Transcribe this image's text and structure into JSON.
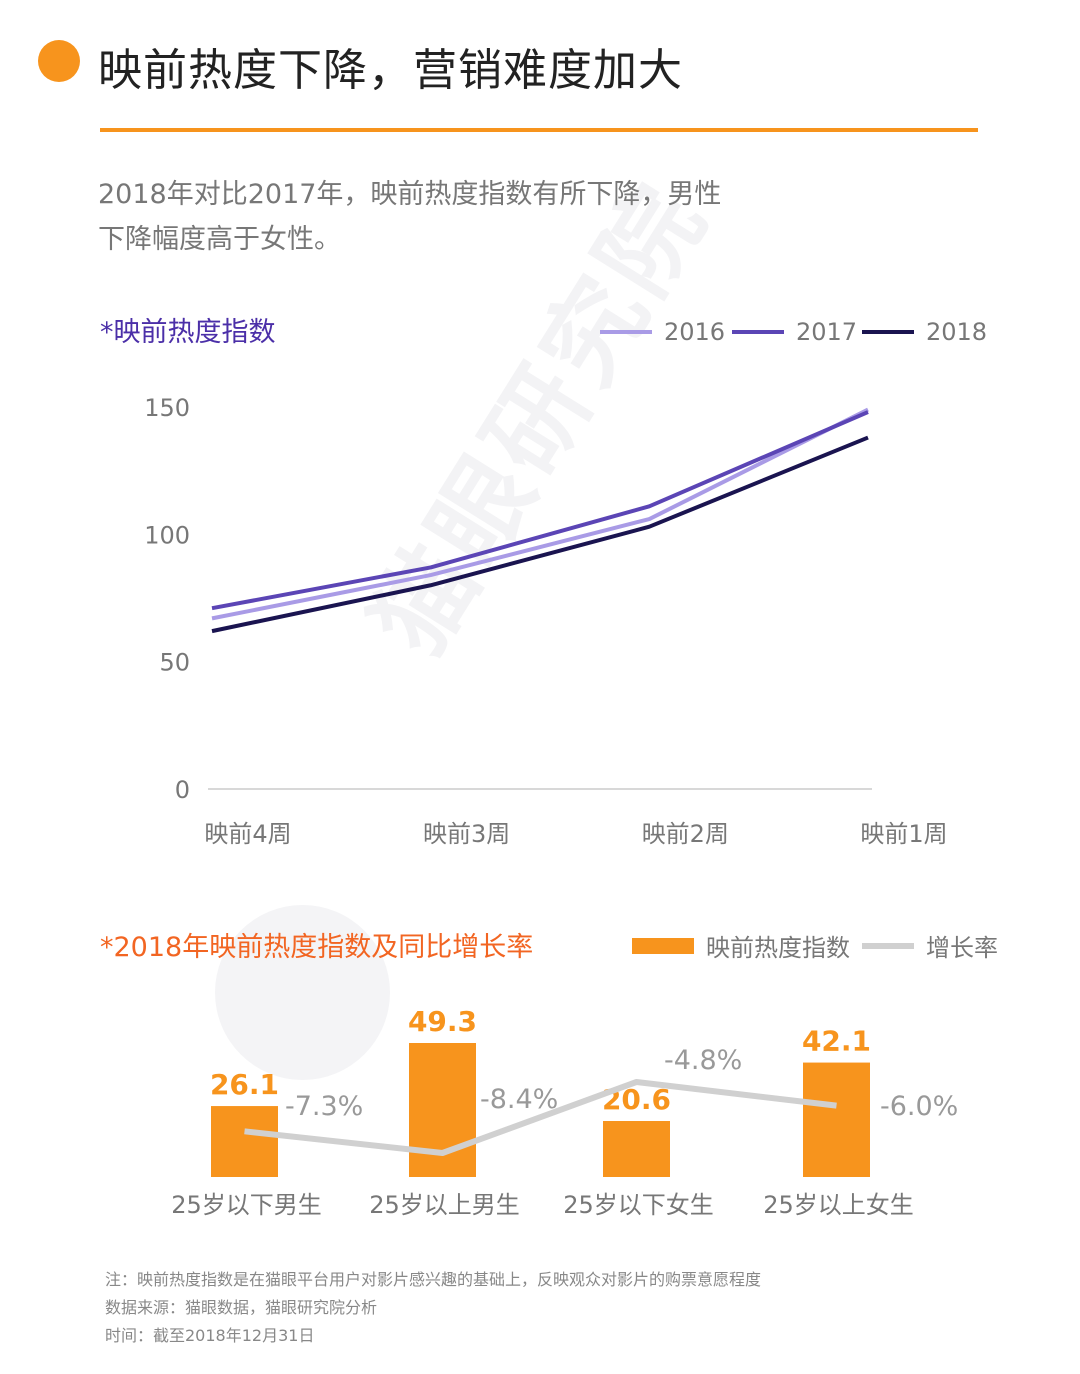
{
  "header": {
    "title": "映前热度下降，营销难度加大",
    "subtitle_line1": "2018年对比2017年，映前热度指数有所下降，男性",
    "subtitle_line2": "下降幅度高于女性。"
  },
  "watermark": "猫眼研究院",
  "colors": {
    "accent": "#f7941d",
    "s2016": "#a99be6",
    "s2017": "#5b45b5",
    "s2018": "#1a1450",
    "growth": "#d0d0d0"
  },
  "chart_data": [
    {
      "type": "line",
      "title": "*映前热度指数",
      "categories": [
        "映前4周",
        "映前3周",
        "映前2周",
        "映前1周"
      ],
      "series": [
        {
          "name": "2016",
          "values": [
            67,
            84,
            106,
            149
          ]
        },
        {
          "name": "2017",
          "values": [
            71,
            87,
            111,
            148
          ]
        },
        {
          "name": "2018",
          "values": [
            62,
            80,
            103,
            138
          ]
        }
      ],
      "yticks": [
        0,
        50,
        100,
        150
      ],
      "ylim": [
        0,
        150
      ],
      "grid": false,
      "legend": "top-right"
    },
    {
      "type": "bar",
      "title": "*2018年映前热度指数及同比增长率",
      "categories": [
        "25岁以下男生",
        "25岁以上男生",
        "25岁以下女生",
        "25岁以上女生"
      ],
      "series": [
        {
          "name": "映前热度指数",
          "values": [
            26.1,
            49.3,
            20.6,
            42.1
          ],
          "labels": [
            "26.1",
            "49.3",
            "20.6",
            "42.1"
          ]
        },
        {
          "name": "增长率",
          "values": [
            -7.3,
            -8.4,
            -4.8,
            -6.0
          ],
          "labels": [
            "-7.3%",
            "-8.4%",
            "-4.8%",
            "-6.0%"
          ]
        }
      ],
      "legend": "top-right"
    }
  ],
  "notes": {
    "note": "注：映前热度指数是在猫眼平台用户对影片感兴趣的基础上，反映观众对影片的购票意愿程度",
    "source": "数据来源：猫眼数据，猫眼研究院分析",
    "time": "时间：截至2018年12月31日"
  }
}
